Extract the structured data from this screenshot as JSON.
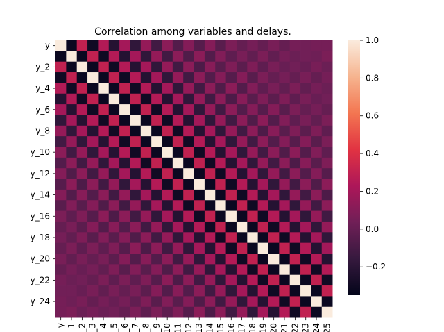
{
  "chart_data": {
    "type": "heatmap",
    "title": "Correlation among variables and delays.",
    "row_labels": [
      "y",
      "y_1",
      "y_2",
      "y_3",
      "y_4",
      "y_5",
      "y_6",
      "y_7",
      "y_8",
      "y_9",
      "y_10",
      "y_11",
      "y_12",
      "y_13",
      "y_14",
      "y_15",
      "y_16",
      "y_17",
      "y_18",
      "y_19",
      "y_20",
      "y_21",
      "y_22",
      "y_23",
      "y_24",
      "y_25"
    ],
    "col_labels": [
      "y",
      "y_1",
      "y_2",
      "y_3",
      "y_4",
      "y_5",
      "y_6",
      "y_7",
      "y_8",
      "y_9",
      "y_10",
      "y_11",
      "y_12",
      "y_13",
      "y_14",
      "y_15",
      "y_16",
      "y_17",
      "y_18",
      "y_19",
      "y_20",
      "y_21",
      "y_22",
      "y_23",
      "y_24",
      "y_25"
    ],
    "shown_row_tick_labels": [
      "y",
      "y_2",
      "y_4",
      "y_6",
      "y_8",
      "y_10",
      "y_12",
      "y_14",
      "y_16",
      "y_18",
      "y_20",
      "y_22",
      "y_24"
    ],
    "diagonal_value": 1.0,
    "lag_correlations": [
      1.0,
      -0.32,
      0.3,
      -0.3,
      0.25,
      -0.22,
      0.2,
      -0.18,
      0.15,
      -0.12,
      0.12,
      -0.08,
      0.1,
      -0.06,
      0.08,
      -0.04,
      0.06,
      -0.02,
      0.05,
      -0.01,
      0.04,
      0.0,
      0.04,
      0.02,
      0.05,
      0.04
    ],
    "vmin": -0.35,
    "vmax": 1.0,
    "colorbar_ticks": [
      1.0,
      0.8,
      0.6,
      0.4,
      0.2,
      0.0,
      -0.2
    ],
    "colorbar_tick_labels": [
      "1.0",
      "0.8",
      "0.6",
      "0.4",
      "0.2",
      "0.0",
      "−0.2"
    ],
    "colormap": [
      "#03051a",
      "#36193e",
      "#701f57",
      "#ad1759",
      "#e13342",
      "#f37651",
      "#f6b48f",
      "#faebdd"
    ]
  }
}
